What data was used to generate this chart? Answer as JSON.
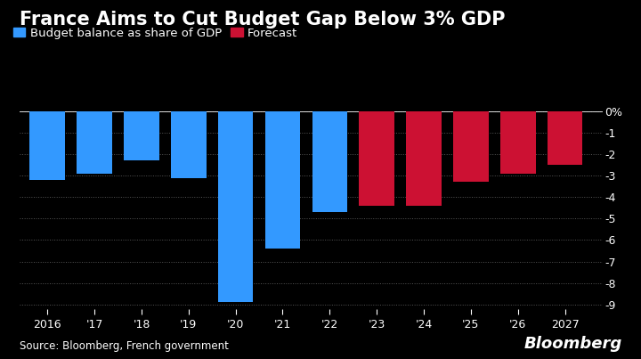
{
  "title": "France Aims to Cut Budget Gap Below 3% GDP",
  "legend_actual": "Budget balance as share of GDP",
  "legend_forecast": "Forecast",
  "source": "Source: Bloomberg, French government",
  "bloomberg_label": "Bloomberg",
  "years": [
    2016,
    2017,
    2018,
    2019,
    2020,
    2021,
    2022,
    2023,
    2024,
    2025,
    2026,
    2027
  ],
  "labels": [
    "2016",
    "'17",
    "'18",
    "'19",
    "'20",
    "'21",
    "'22",
    "'23",
    "'24",
    "'25",
    "'26",
    "2027"
  ],
  "values": [
    -3.2,
    -2.9,
    -2.3,
    -3.1,
    -8.9,
    -6.4,
    -4.7,
    -4.4,
    -4.4,
    -3.3,
    -2.9,
    -2.5
  ],
  "is_forecast": [
    false,
    false,
    false,
    false,
    false,
    false,
    false,
    true,
    true,
    true,
    true,
    true
  ],
  "color_actual": "#3399FF",
  "color_forecast": "#CC1133",
  "background_color": "#000000",
  "text_color": "#ffffff",
  "grid_color": "#555555",
  "ylim": [
    -9.2,
    0.5
  ],
  "yticks": [
    0,
    -1,
    -2,
    -3,
    -4,
    -5,
    -6,
    -7,
    -8,
    -9
  ],
  "ytick_labels": [
    "0%",
    "-1",
    "-2",
    "-3",
    "-4",
    "-5",
    "-6",
    "-7",
    "-8",
    "-9"
  ],
  "title_fontsize": 15,
  "label_fontsize": 9.5,
  "tick_fontsize": 9,
  "source_fontsize": 8.5,
  "bloomberg_fontsize": 13
}
